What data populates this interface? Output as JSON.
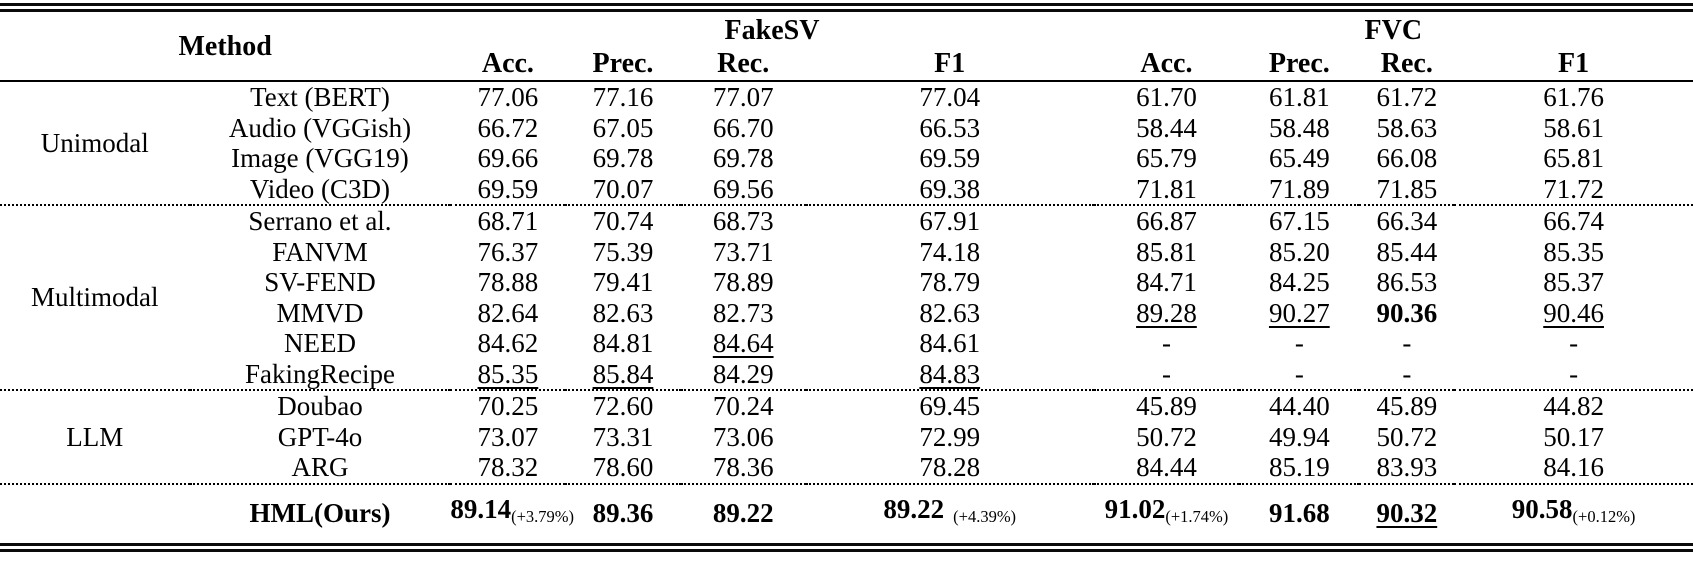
{
  "colors": {
    "text": "#000000",
    "background": "#ffffff",
    "rule": "#0a0a0a"
  },
  "table": {
    "col_groups": [
      {
        "label": "Method",
        "span": 2
      },
      {
        "label": "FakeSV",
        "span": 4
      },
      {
        "label": "FVC",
        "span": 4
      }
    ],
    "metric_headers": [
      "Acc.",
      "Prec.",
      "Rec.",
      "F1"
    ],
    "groups": [
      {
        "label": "Unimodal",
        "rows": [
          {
            "method": "Text (BERT)",
            "cells": [
              {
                "t": "77.06"
              },
              {
                "t": "77.16"
              },
              {
                "t": "77.07"
              },
              {
                "t": "77.04"
              },
              {
                "t": "61.70"
              },
              {
                "t": "61.81"
              },
              {
                "t": "61.72"
              },
              {
                "t": "61.76"
              }
            ]
          },
          {
            "method": "Audio (VGGish)",
            "cells": [
              {
                "t": "66.72"
              },
              {
                "t": "67.05"
              },
              {
                "t": "66.70"
              },
              {
                "t": "66.53"
              },
              {
                "t": "58.44"
              },
              {
                "t": "58.48"
              },
              {
                "t": "58.63"
              },
              {
                "t": "58.61"
              }
            ]
          },
          {
            "method": "Image (VGG19)",
            "cells": [
              {
                "t": "69.66"
              },
              {
                "t": "69.78"
              },
              {
                "t": "69.78"
              },
              {
                "t": "69.59"
              },
              {
                "t": "65.79"
              },
              {
                "t": "65.49"
              },
              {
                "t": "66.08"
              },
              {
                "t": "65.81"
              }
            ]
          },
          {
            "method": "Video (C3D)",
            "cells": [
              {
                "t": "69.59"
              },
              {
                "t": "70.07"
              },
              {
                "t": "69.56"
              },
              {
                "t": "69.38"
              },
              {
                "t": "71.81"
              },
              {
                "t": "71.89"
              },
              {
                "t": "71.85"
              },
              {
                "t": "71.72"
              }
            ]
          }
        ]
      },
      {
        "label": "Multimodal",
        "rows": [
          {
            "method": "Serrano et al.",
            "cells": [
              {
                "t": "68.71"
              },
              {
                "t": "70.74"
              },
              {
                "t": "68.73"
              },
              {
                "t": "67.91"
              },
              {
                "t": "66.87"
              },
              {
                "t": "67.15"
              },
              {
                "t": "66.34"
              },
              {
                "t": "66.74"
              }
            ]
          },
          {
            "method": "FANVM",
            "cells": [
              {
                "t": "76.37"
              },
              {
                "t": "75.39"
              },
              {
                "t": "73.71"
              },
              {
                "t": "74.18"
              },
              {
                "t": "85.81"
              },
              {
                "t": "85.20"
              },
              {
                "t": "85.44"
              },
              {
                "t": "85.35"
              }
            ]
          },
          {
            "method": "SV-FEND",
            "cells": [
              {
                "t": "78.88"
              },
              {
                "t": "79.41"
              },
              {
                "t": "78.89"
              },
              {
                "t": "78.79"
              },
              {
                "t": "84.71"
              },
              {
                "t": "84.25"
              },
              {
                "t": "86.53"
              },
              {
                "t": "85.37"
              }
            ]
          },
          {
            "method": "MMVD",
            "cells": [
              {
                "t": "82.64"
              },
              {
                "t": "82.63"
              },
              {
                "t": "82.73"
              },
              {
                "t": "82.63"
              },
              {
                "t": "89.28",
                "u": true
              },
              {
                "t": "90.27",
                "u": true
              },
              {
                "t": "90.36",
                "b": true
              },
              {
                "t": "90.46",
                "u": true
              }
            ]
          },
          {
            "method": "NEED",
            "cells": [
              {
                "t": "84.62"
              },
              {
                "t": "84.81"
              },
              {
                "t": "84.64",
                "u": true
              },
              {
                "t": "84.61"
              },
              {
                "t": "-"
              },
              {
                "t": "-"
              },
              {
                "t": "-"
              },
              {
                "t": "-"
              }
            ]
          },
          {
            "method": "FakingRecipe",
            "cells": [
              {
                "t": "85.35",
                "u": true
              },
              {
                "t": "85.84",
                "u": true
              },
              {
                "t": "84.29"
              },
              {
                "t": "84.83",
                "u": true
              },
              {
                "t": "-"
              },
              {
                "t": "-"
              },
              {
                "t": "-"
              },
              {
                "t": "-"
              }
            ]
          }
        ]
      },
      {
        "label": "LLM",
        "rows": [
          {
            "method": "Doubao",
            "cells": [
              {
                "t": "70.25"
              },
              {
                "t": "72.60"
              },
              {
                "t": "70.24"
              },
              {
                "t": "69.45"
              },
              {
                "t": "45.89"
              },
              {
                "t": "44.40"
              },
              {
                "t": "45.89"
              },
              {
                "t": "44.82"
              }
            ]
          },
          {
            "method": "GPT-4o",
            "cells": [
              {
                "t": "73.07"
              },
              {
                "t": "73.31"
              },
              {
                "t": "73.06"
              },
              {
                "t": "72.99"
              },
              {
                "t": "50.72"
              },
              {
                "t": "49.94"
              },
              {
                "t": "50.72"
              },
              {
                "t": "50.17"
              }
            ]
          },
          {
            "method": "ARG",
            "cells": [
              {
                "t": "78.32"
              },
              {
                "t": "78.60"
              },
              {
                "t": "78.36"
              },
              {
                "t": "78.28"
              },
              {
                "t": "84.44"
              },
              {
                "t": "85.19"
              },
              {
                "t": "83.93"
              },
              {
                "t": "84.16"
              }
            ]
          }
        ]
      },
      {
        "label": "",
        "emphasis": true,
        "rows": [
          {
            "method": "HML(Ours)",
            "cells": [
              {
                "t": "89.14",
                "b": true,
                "sub": "(+3.79%)"
              },
              {
                "t": "89.36",
                "b": true
              },
              {
                "t": "89.22",
                "b": true
              },
              {
                "t": "89.22",
                "b": true,
                "sub": "(+4.39%)",
                "gap": true
              },
              {
                "t": "91.02",
                "b": true,
                "sub": "(+1.74%)"
              },
              {
                "t": "91.68",
                "b": true
              },
              {
                "t": "90.32",
                "u": true
              },
              {
                "t": "90.58",
                "b": true,
                "sub": "(+0.12%)"
              }
            ]
          }
        ]
      }
    ]
  }
}
